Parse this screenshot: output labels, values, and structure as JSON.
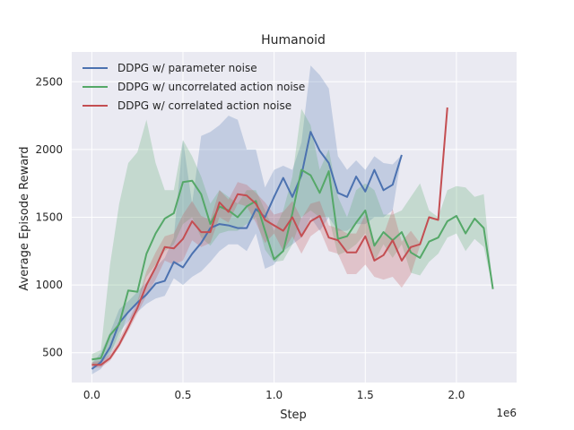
{
  "chart_data": {
    "type": "line",
    "title": "Humanoid",
    "xlabel": "Step",
    "ylabel": "Average Episode Reward",
    "x_offset_label": "1e6",
    "xlim": [
      -0.11,
      2.33
    ],
    "ylim": [
      280,
      2720
    ],
    "xticks": [
      0.0,
      0.5,
      1.0,
      1.5,
      2.0
    ],
    "xtick_labels": [
      "0.0",
      "0.5",
      "1.0",
      "1.5",
      "2.0"
    ],
    "yticks": [
      500,
      1000,
      1500,
      2000,
      2500
    ],
    "ytick_labels": [
      "500",
      "1000",
      "1500",
      "2000",
      "2500"
    ],
    "grid": true,
    "legend_position": "upper-left",
    "colors": {
      "background": "#eaeaf2",
      "grid": "#ffffff"
    },
    "series": [
      {
        "name": "DDPG w/ parameter noise",
        "color": "#4c72b0",
        "x": [
          0.0,
          0.05,
          0.1,
          0.15,
          0.2,
          0.25,
          0.3,
          0.35,
          0.4,
          0.45,
          0.5,
          0.55,
          0.6,
          0.65,
          0.7,
          0.75,
          0.8,
          0.85,
          0.9,
          0.95,
          1.0,
          1.05,
          1.1,
          1.15,
          1.2,
          1.25,
          1.3,
          1.35,
          1.4,
          1.45,
          1.5,
          1.55,
          1.6,
          1.65,
          1.7
        ],
        "y": [
          380,
          430,
          540,
          720,
          800,
          870,
          930,
          1010,
          1030,
          1170,
          1130,
          1230,
          1310,
          1420,
          1450,
          1440,
          1420,
          1420,
          1560,
          1500,
          1650,
          1790,
          1650,
          1810,
          2130,
          1990,
          1900,
          1680,
          1650,
          1800,
          1690,
          1850,
          1700,
          1740,
          1960
        ],
        "lower": [
          340,
          380,
          480,
          650,
          730,
          800,
          860,
          900,
          920,
          1050,
          1000,
          1060,
          1100,
          1170,
          1250,
          1300,
          1300,
          1250,
          1380,
          1120,
          1150,
          1250,
          1300,
          1350,
          1500,
          1400,
          1500,
          1400,
          1400,
          1450,
          1450,
          1500,
          1500,
          1550,
          1960
        ],
        "upper": [
          420,
          500,
          650,
          820,
          880,
          950,
          1020,
          1130,
          1200,
          1350,
          2070,
          1600,
          2100,
          2130,
          2180,
          2250,
          2220,
          2000,
          2000,
          1720,
          1850,
          1880,
          1850,
          2050,
          2620,
          2550,
          2450,
          1950,
          1850,
          1920,
          1850,
          1950,
          1900,
          1890,
          1960
        ]
      },
      {
        "name": "DDPG w/ uncorrelated action noise",
        "color": "#55a868",
        "x": [
          0.0,
          0.05,
          0.1,
          0.15,
          0.2,
          0.25,
          0.3,
          0.35,
          0.4,
          0.45,
          0.5,
          0.55,
          0.6,
          0.65,
          0.7,
          0.75,
          0.8,
          0.85,
          0.9,
          0.95,
          1.0,
          1.05,
          1.1,
          1.15,
          1.2,
          1.25,
          1.3,
          1.35,
          1.4,
          1.45,
          1.5,
          1.55,
          1.6,
          1.65,
          1.7,
          1.75,
          1.8,
          1.85,
          1.9,
          1.95,
          2.0,
          2.05,
          2.1,
          2.15,
          2.2
        ],
        "y": [
          450,
          460,
          630,
          710,
          960,
          950,
          1230,
          1380,
          1490,
          1530,
          1760,
          1770,
          1670,
          1450,
          1580,
          1550,
          1500,
          1580,
          1620,
          1400,
          1190,
          1250,
          1530,
          1850,
          1810,
          1680,
          1840,
          1340,
          1360,
          1460,
          1550,
          1290,
          1390,
          1330,
          1390,
          1240,
          1200,
          1320,
          1350,
          1470,
          1510,
          1380,
          1490,
          1420,
          970
        ],
        "lower": [
          410,
          420,
          500,
          600,
          800,
          860,
          1060,
          1150,
          1250,
          1300,
          1450,
          1500,
          1350,
          1290,
          1380,
          1400,
          1400,
          1450,
          1500,
          1260,
          1170,
          1180,
          1300,
          1500,
          1550,
          1500,
          1500,
          1220,
          1250,
          1300,
          1380,
          1170,
          1300,
          1200,
          1300,
          1090,
          1070,
          1170,
          1230,
          1350,
          1380,
          1250,
          1340,
          1280,
          970
        ],
        "upper": [
          490,
          520,
          1150,
          1600,
          1900,
          1980,
          2220,
          1900,
          1700,
          1700,
          2070,
          1950,
          1800,
          1600,
          1700,
          1650,
          1600,
          1700,
          1700,
          1550,
          1400,
          1550,
          1800,
          2300,
          2180,
          1850,
          2000,
          1650,
          1500,
          1700,
          1750,
          1700,
          1520,
          1520,
          1550,
          1650,
          1750,
          1550,
          1500,
          1700,
          1730,
          1720,
          1650,
          1670,
          970
        ]
      },
      {
        "name": "DDPG w/ correlated action noise",
        "color": "#c44e52",
        "x": [
          0.0,
          0.05,
          0.1,
          0.15,
          0.2,
          0.25,
          0.3,
          0.35,
          0.4,
          0.45,
          0.5,
          0.55,
          0.6,
          0.65,
          0.7,
          0.75,
          0.8,
          0.85,
          0.9,
          0.95,
          1.0,
          1.05,
          1.1,
          1.15,
          1.2,
          1.25,
          1.3,
          1.35,
          1.4,
          1.45,
          1.5,
          1.55,
          1.6,
          1.65,
          1.7,
          1.75,
          1.8,
          1.85,
          1.9,
          1.95
        ],
        "y": [
          410,
          410,
          460,
          560,
          690,
          830,
          1000,
          1130,
          1280,
          1270,
          1340,
          1470,
          1390,
          1390,
          1610,
          1540,
          1670,
          1660,
          1600,
          1480,
          1440,
          1400,
          1500,
          1360,
          1470,
          1510,
          1350,
          1330,
          1240,
          1240,
          1360,
          1180,
          1220,
          1330,
          1180,
          1280,
          1300,
          1500,
          1480,
          2310
        ],
        "lower": [
          390,
          390,
          440,
          540,
          660,
          790,
          920,
          1040,
          1180,
          1150,
          1180,
          1330,
          1280,
          1310,
          1500,
          1460,
          1600,
          1580,
          1460,
          1310,
          1380,
          1250,
          1360,
          1230,
          1360,
          1410,
          1250,
          1230,
          1080,
          1080,
          1150,
          1060,
          1040,
          1060,
          980,
          1080,
          1290,
          1500,
          1480,
          2310
        ],
        "upper": [
          430,
          440,
          490,
          600,
          730,
          880,
          1100,
          1240,
          1360,
          1380,
          1520,
          1620,
          1510,
          1480,
          1700,
          1630,
          1760,
          1740,
          1680,
          1610,
          1520,
          1540,
          1620,
          1490,
          1600,
          1620,
          1440,
          1420,
          1380,
          1380,
          1520,
          1310,
          1370,
          1560,
          1320,
          1400,
          1310,
          1500,
          1480,
          2310
        ]
      }
    ]
  }
}
